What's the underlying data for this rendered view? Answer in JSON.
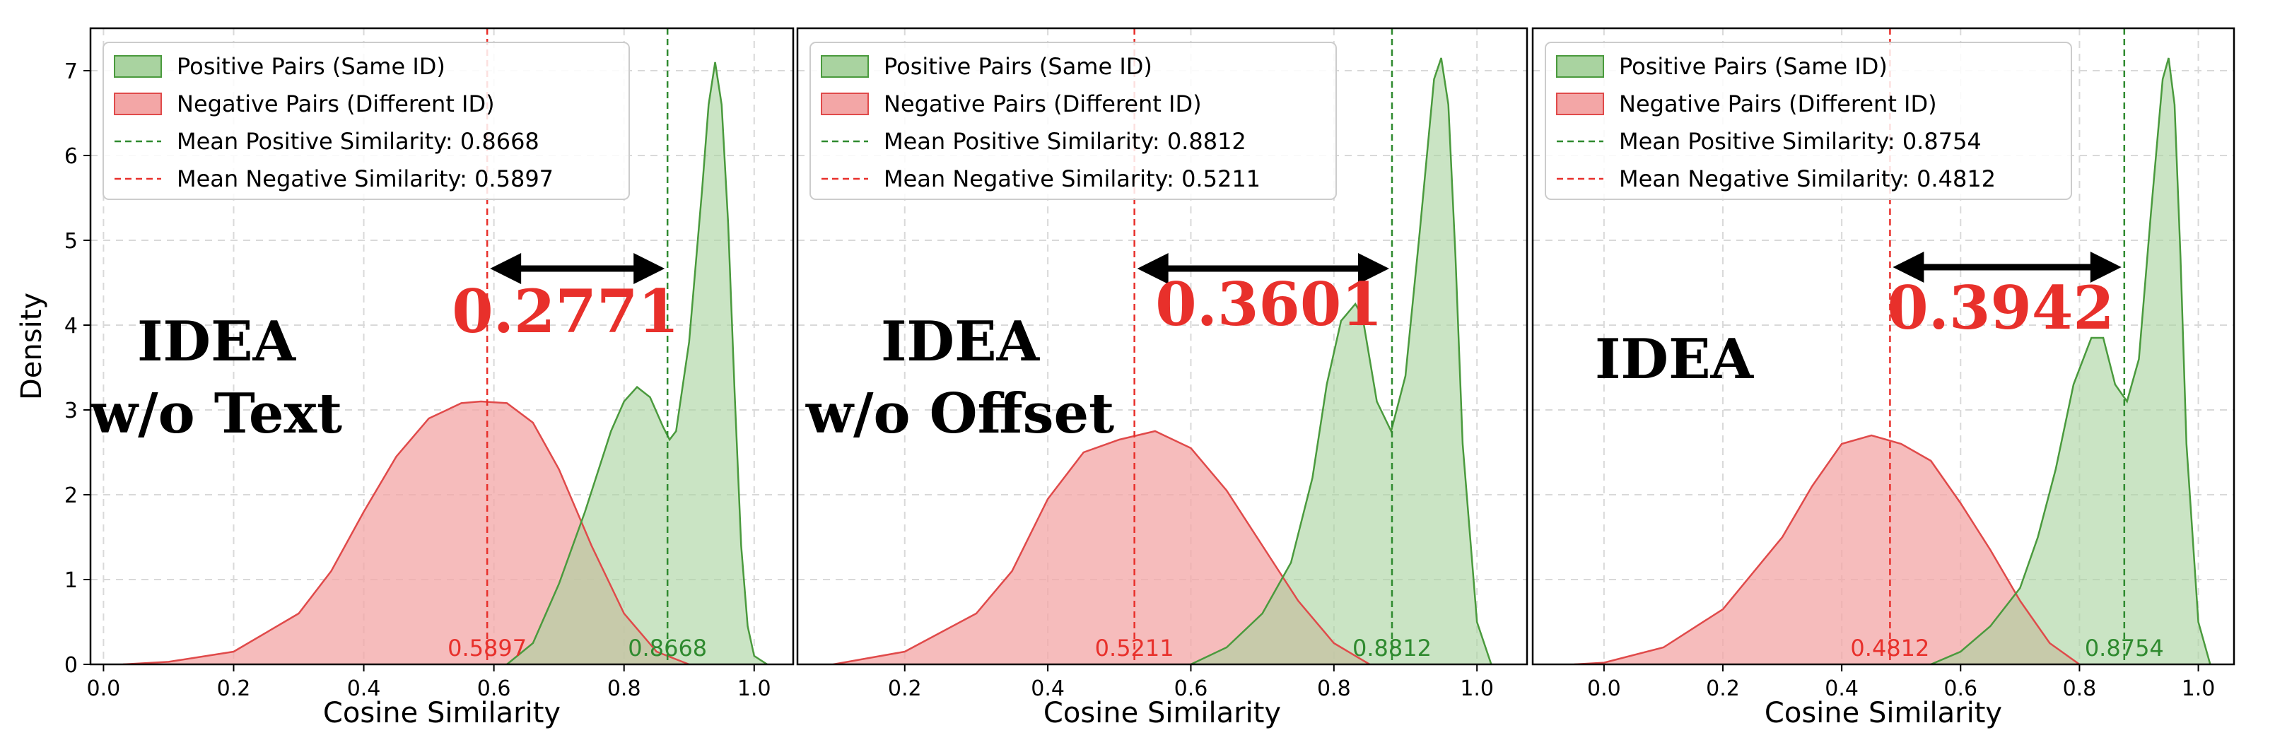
{
  "colors": {
    "positive_fill": "#a9d3a0",
    "positive_line": "#4a9a3d",
    "negative_fill": "#f3a6a6",
    "negative_line": "#e04a4a",
    "positive_mean": "#2f8a2f",
    "negative_mean": "#e8302b",
    "gap_label": "#e8302b",
    "grid": "#d9d9d9"
  },
  "chart_data": [
    {
      "type": "area",
      "panel_label_lines": [
        "IDEA",
        "w/o Text"
      ],
      "gap_label": "0.2771",
      "xlabel": "Cosine Similarity",
      "ylabel": "Density",
      "show_ylabel": true,
      "show_yticks": true,
      "xlim": [
        -0.02,
        1.06
      ],
      "ylim": [
        0,
        7.5
      ],
      "xticks": [
        "0.0",
        "0.2",
        "0.4",
        "0.6",
        "0.8",
        "1.0"
      ],
      "yticks": [
        "0",
        "1",
        "2",
        "3",
        "4",
        "5",
        "6",
        "7"
      ],
      "grid": true,
      "legend_position": "upper-left",
      "legend": [
        "Positive Pairs (Same ID)",
        "Negative Pairs (Different ID)",
        "Mean Positive Similarity: 0.8668",
        "Mean Negative Similarity: 0.5897"
      ],
      "mean_negative": 0.5897,
      "mean_positive": 0.8668,
      "mean_negative_label": "0.5897",
      "mean_positive_label": "0.8668",
      "series": [
        {
          "name": "Positive Pairs (Same ID)",
          "x": [
            0.62,
            0.66,
            0.7,
            0.74,
            0.78,
            0.8,
            0.82,
            0.84,
            0.86,
            0.87,
            0.88,
            0.9,
            0.92,
            0.93,
            0.94,
            0.95,
            0.96,
            0.97,
            0.98,
            0.99,
            1.0,
            1.02
          ],
          "y": [
            0.0,
            0.25,
            0.95,
            1.8,
            2.75,
            3.1,
            3.27,
            3.15,
            2.8,
            2.65,
            2.75,
            3.8,
            5.6,
            6.6,
            7.1,
            6.6,
            5.2,
            3.2,
            1.4,
            0.45,
            0.1,
            0.0
          ]
        },
        {
          "name": "Negative Pairs (Different ID)",
          "x": [
            0.03,
            0.1,
            0.2,
            0.3,
            0.35,
            0.4,
            0.45,
            0.5,
            0.55,
            0.58,
            0.62,
            0.66,
            0.7,
            0.75,
            0.8,
            0.85,
            0.9
          ],
          "y": [
            0.0,
            0.03,
            0.15,
            0.6,
            1.1,
            1.8,
            2.45,
            2.9,
            3.08,
            3.1,
            3.08,
            2.85,
            2.3,
            1.4,
            0.6,
            0.15,
            0.0
          ]
        }
      ]
    },
    {
      "type": "area",
      "panel_label_lines": [
        "IDEA",
        "w/o Offset"
      ],
      "gap_label": "0.3601",
      "xlabel": "Cosine Similarity",
      "ylabel": "",
      "show_ylabel": false,
      "show_yticks": false,
      "xlim": [
        0.05,
        1.07
      ],
      "ylim": [
        0,
        7.5
      ],
      "xticks": [
        "0.2",
        "0.4",
        "0.6",
        "0.8",
        "1.0"
      ],
      "yticks": [
        "0",
        "1",
        "2",
        "3",
        "4",
        "5",
        "6",
        "7"
      ],
      "grid": true,
      "legend_position": "upper-left",
      "legend": [
        "Positive Pairs (Same ID)",
        "Negative Pairs (Different ID)",
        "Mean Positive Similarity: 0.8812",
        "Mean Negative Similarity: 0.5211"
      ],
      "mean_negative": 0.5211,
      "mean_positive": 0.8812,
      "mean_negative_label": "0.5211",
      "mean_positive_label": "0.8812",
      "series": [
        {
          "name": "Positive Pairs (Same ID)",
          "x": [
            0.6,
            0.65,
            0.7,
            0.74,
            0.77,
            0.79,
            0.81,
            0.83,
            0.84,
            0.86,
            0.88,
            0.9,
            0.92,
            0.94,
            0.95,
            0.96,
            0.97,
            0.98,
            1.0,
            1.02
          ],
          "y": [
            0.0,
            0.2,
            0.6,
            1.2,
            2.2,
            3.3,
            4.05,
            4.25,
            4.1,
            3.1,
            2.75,
            3.4,
            5.1,
            6.9,
            7.15,
            6.6,
            4.8,
            2.6,
            0.5,
            0.0
          ]
        },
        {
          "name": "Negative Pairs (Different ID)",
          "x": [
            0.1,
            0.2,
            0.3,
            0.35,
            0.4,
            0.45,
            0.5,
            0.55,
            0.6,
            0.65,
            0.7,
            0.75,
            0.8,
            0.85
          ],
          "y": [
            0.0,
            0.15,
            0.6,
            1.1,
            1.95,
            2.5,
            2.65,
            2.75,
            2.55,
            2.05,
            1.4,
            0.75,
            0.25,
            0.0
          ]
        }
      ]
    },
    {
      "type": "area",
      "panel_label_lines": [
        "IDEA"
      ],
      "gap_label": "0.3942",
      "xlabel": "Cosine Similarity",
      "ylabel": "",
      "show_ylabel": false,
      "show_yticks": false,
      "xlim": [
        -0.12,
        1.06
      ],
      "ylim": [
        0,
        7.5
      ],
      "xticks": [
        "0.0",
        "0.2",
        "0.4",
        "0.6",
        "0.8",
        "1.0"
      ],
      "yticks": [
        "0",
        "1",
        "2",
        "3",
        "4",
        "5",
        "6",
        "7"
      ],
      "grid": true,
      "legend_position": "upper-left",
      "legend": [
        "Positive Pairs (Same ID)",
        "Negative Pairs (Different ID)",
        "Mean Positive Similarity: 0.8754",
        "Mean Negative Similarity: 0.4812"
      ],
      "mean_negative": 0.4812,
      "mean_positive": 0.8754,
      "mean_negative_label": "0.4812",
      "mean_positive_label": "0.8754",
      "series": [
        {
          "name": "Positive Pairs (Same ID)",
          "x": [
            0.55,
            0.6,
            0.65,
            0.7,
            0.73,
            0.76,
            0.79,
            0.82,
            0.84,
            0.86,
            0.88,
            0.9,
            0.92,
            0.94,
            0.95,
            0.96,
            0.97,
            0.98,
            1.0,
            1.02
          ],
          "y": [
            0.0,
            0.15,
            0.45,
            0.9,
            1.5,
            2.3,
            3.3,
            3.85,
            3.85,
            3.3,
            3.1,
            3.6,
            5.3,
            6.9,
            7.15,
            6.6,
            4.8,
            2.6,
            0.5,
            0.0
          ]
        },
        {
          "name": "Negative Pairs (Different ID)",
          "x": [
            -0.05,
            0.0,
            0.1,
            0.2,
            0.3,
            0.35,
            0.4,
            0.45,
            0.5,
            0.55,
            0.6,
            0.65,
            0.7,
            0.75,
            0.8
          ],
          "y": [
            0.0,
            0.02,
            0.2,
            0.65,
            1.5,
            2.1,
            2.6,
            2.7,
            2.6,
            2.4,
            1.9,
            1.35,
            0.75,
            0.25,
            0.0
          ]
        }
      ]
    }
  ]
}
